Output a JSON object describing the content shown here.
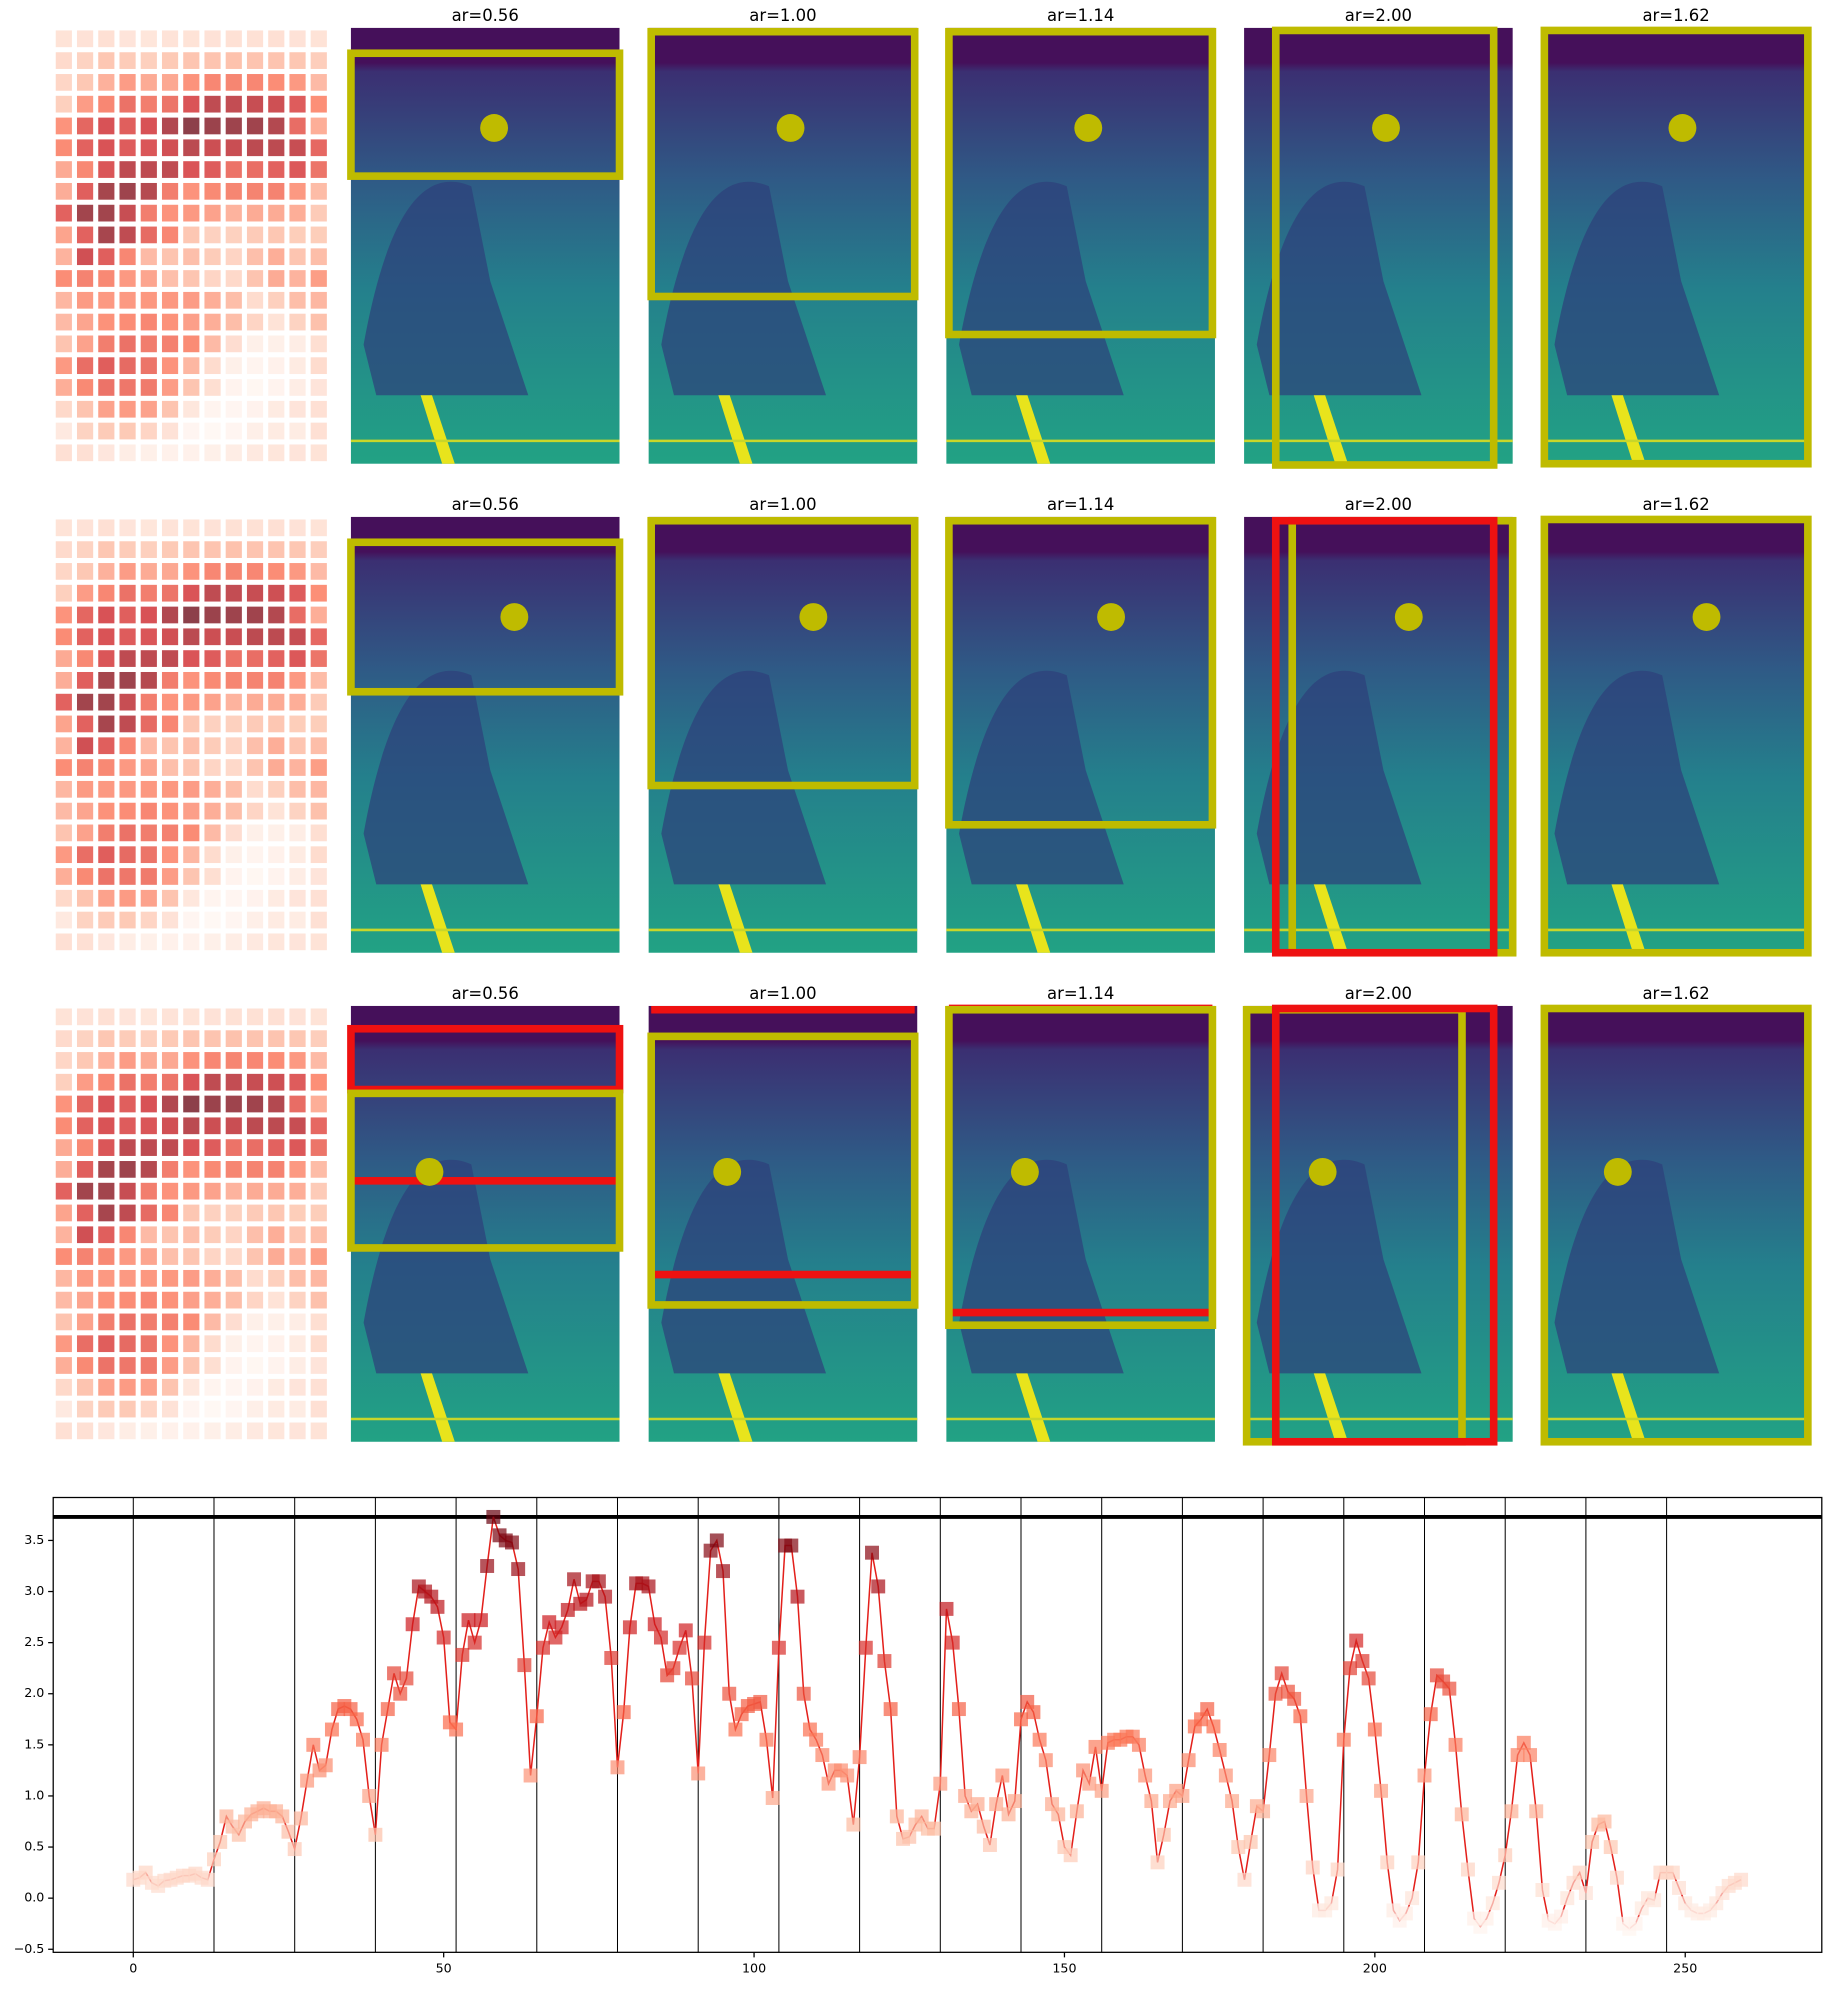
{
  "figure": {
    "rows": [
      {
        "titles": [
          "ar=0.56",
          "ar=1.00",
          "ar=1.14",
          "ar=2.00",
          "ar=1.62"
        ]
      },
      {
        "titles": [
          "ar=0.56",
          "ar=1.00",
          "ar=1.14",
          "ar=2.00",
          "ar=1.62"
        ]
      },
      {
        "titles": [
          "ar=0.56",
          "ar=1.00",
          "ar=1.14",
          "ar=2.00",
          "ar=1.62"
        ]
      }
    ]
  },
  "chart_data": {
    "type": "line",
    "color": "#e3201b",
    "marker_colormap": "Reds",
    "grid_columns": 13,
    "x": [
      0,
      1,
      2,
      3,
      4,
      5,
      6,
      7,
      8,
      9,
      10,
      11,
      12,
      13,
      14,
      15,
      16,
      17,
      18,
      19,
      20,
      21,
      22,
      23,
      24,
      25,
      26,
      27,
      28,
      29,
      30,
      31,
      32,
      33,
      34,
      35,
      36,
      37,
      38,
      39,
      40,
      41,
      42,
      43,
      44,
      45,
      46,
      47,
      48,
      49,
      50,
      51,
      52,
      53,
      54,
      55,
      56,
      57,
      58,
      59,
      60,
      61,
      62,
      63,
      64,
      65,
      66,
      67,
      68,
      69,
      70,
      71,
      72,
      73,
      74,
      75,
      76,
      77,
      78,
      79,
      80,
      81,
      82,
      83,
      84,
      85,
      86,
      87,
      88,
      89,
      90,
      91,
      92,
      93,
      94,
      95,
      96,
      97,
      98,
      99,
      100,
      101,
      102,
      103,
      104,
      105,
      106,
      107,
      108,
      109,
      110,
      111,
      112,
      113,
      114,
      115,
      116,
      117,
      118,
      119,
      120,
      121,
      122,
      123,
      124,
      125,
      126,
      127,
      128,
      129,
      130,
      131,
      132,
      133,
      134,
      135,
      136,
      137,
      138,
      139,
      140,
      141,
      142,
      143,
      144,
      145,
      146,
      147,
      148,
      149,
      150,
      151,
      152,
      153,
      154,
      155,
      156,
      157,
      158,
      159,
      160,
      161,
      162,
      163,
      164,
      165,
      166,
      167,
      168,
      169,
      170,
      171,
      172,
      173,
      174,
      175,
      176,
      177,
      178,
      179,
      180,
      181,
      182,
      183,
      184,
      185,
      186,
      187,
      188,
      189,
      190,
      191,
      192,
      193,
      194,
      195,
      196,
      197,
      198,
      199,
      200,
      201,
      202,
      203,
      204,
      205,
      206,
      207,
      208,
      209,
      210,
      211,
      212,
      213,
      214,
      215,
      216,
      217,
      218,
      219,
      220,
      221,
      222,
      223,
      224,
      225,
      226,
      227,
      228,
      229,
      230,
      231,
      232,
      233,
      234,
      235,
      236,
      237,
      238,
      239,
      240,
      241,
      242,
      243,
      244,
      245,
      246,
      247,
      248,
      249,
      250,
      251,
      252,
      253,
      254,
      255,
      256,
      257,
      258,
      259
    ],
    "values": [
      0.18,
      0.2,
      0.25,
      0.15,
      0.12,
      0.17,
      0.18,
      0.2,
      0.22,
      0.22,
      0.24,
      0.2,
      0.18,
      0.38,
      0.55,
      0.8,
      0.7,
      0.62,
      0.75,
      0.82,
      0.85,
      0.88,
      0.85,
      0.85,
      0.8,
      0.65,
      0.48,
      0.78,
      1.15,
      1.5,
      1.25,
      1.3,
      1.65,
      1.85,
      1.88,
      1.85,
      1.75,
      1.55,
      1.0,
      0.62,
      1.5,
      1.85,
      2.2,
      2.0,
      2.15,
      2.68,
      3.05,
      3.0,
      2.95,
      2.85,
      2.55,
      1.72,
      1.65,
      2.38,
      2.72,
      2.5,
      2.72,
      3.25,
      3.73,
      3.55,
      3.5,
      3.48,
      3.22,
      2.28,
      1.2,
      1.78,
      2.45,
      2.7,
      2.55,
      2.65,
      2.82,
      3.12,
      2.88,
      2.92,
      3.1,
      3.1,
      2.95,
      2.35,
      1.28,
      1.82,
      2.65,
      3.08,
      3.08,
      3.05,
      2.68,
      2.55,
      2.18,
      2.25,
      2.45,
      2.62,
      2.15,
      1.22,
      2.5,
      3.4,
      3.5,
      3.2,
      2.0,
      1.65,
      1.8,
      1.88,
      1.9,
      1.92,
      1.55,
      0.98,
      2.45,
      3.45,
      3.45,
      2.95,
      2.0,
      1.65,
      1.55,
      1.4,
      1.12,
      1.25,
      1.25,
      1.2,
      0.72,
      1.38,
      2.45,
      3.38,
      3.05,
      2.32,
      1.85,
      0.8,
      0.58,
      0.6,
      0.72,
      0.8,
      0.68,
      0.68,
      1.12,
      2.83,
      2.5,
      1.85,
      1.0,
      0.85,
      0.92,
      0.7,
      0.52,
      0.92,
      1.2,
      0.82,
      0.95,
      1.75,
      1.92,
      1.82,
      1.55,
      1.35,
      0.92,
      0.82,
      0.5,
      0.42,
      0.85,
      1.25,
      1.12,
      1.48,
      1.05,
      1.52,
      1.55,
      1.55,
      1.58,
      1.58,
      1.5,
      1.2,
      0.95,
      0.35,
      0.62,
      0.95,
      1.05,
      1.0,
      1.35,
      1.68,
      1.75,
      1.85,
      1.68,
      1.45,
      1.2,
      0.95,
      0.5,
      0.18,
      0.55,
      0.9,
      0.85,
      1.4,
      2.0,
      2.2,
      2.02,
      1.95,
      1.78,
      1.0,
      0.3,
      -0.12,
      -0.12,
      -0.05,
      0.28,
      1.55,
      2.25,
      2.52,
      2.32,
      2.15,
      1.65,
      1.05,
      0.35,
      -0.12,
      -0.22,
      -0.15,
      0.0,
      0.35,
      1.2,
      1.8,
      2.18,
      2.12,
      2.05,
      1.5,
      0.82,
      0.28,
      -0.2,
      -0.28,
      -0.2,
      -0.05,
      0.15,
      0.42,
      0.85,
      1.4,
      1.52,
      1.4,
      0.85,
      0.08,
      -0.22,
      -0.25,
      -0.18,
      0.0,
      0.15,
      0.25,
      0.05,
      0.55,
      0.72,
      0.75,
      0.5,
      0.2,
      -0.25,
      -0.3,
      -0.25,
      -0.1,
      0.0,
      -0.02,
      0.25,
      0.25,
      0.25,
      0.1,
      -0.05,
      -0.12,
      -0.15,
      -0.15,
      -0.12,
      -0.05,
      0.05,
      0.12,
      0.15,
      0.18
    ],
    "vlines": [
      0,
      13,
      26,
      39,
      52,
      65,
      78,
      91,
      104,
      117,
      130,
      143,
      156,
      169,
      182,
      195,
      208,
      221,
      234,
      247
    ],
    "hline": 3.73,
    "xlim": [
      -12.9,
      272
    ],
    "ylim": [
      -0.53,
      3.92
    ],
    "xticks": [
      0,
      50,
      100,
      150,
      200,
      250
    ],
    "yticks": [
      {
        "value": -0.5,
        "label": "−0.5"
      },
      {
        "value": 0,
        "label": "0.0"
      },
      0.5,
      {
        "value": 1,
        "label": "1.0"
      },
      1.5,
      {
        "value": 2,
        "label": "2.0"
      },
      2.5,
      {
        "value": 3,
        "label": "3.0"
      },
      3.5
    ]
  }
}
